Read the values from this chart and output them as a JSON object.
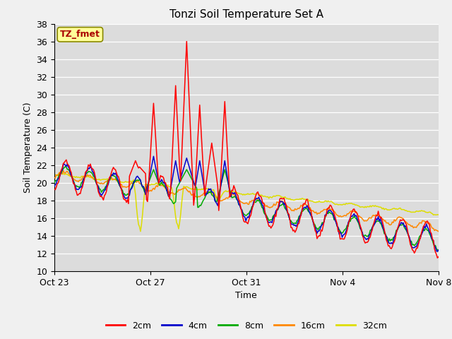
{
  "title": "Tonzi Soil Temperature Set A",
  "xlabel": "Time",
  "ylabel": "Soil Temperature (C)",
  "ylim": [
    10,
    38
  ],
  "yticks": [
    10,
    12,
    14,
    16,
    18,
    20,
    22,
    24,
    26,
    28,
    30,
    32,
    34,
    36,
    38
  ],
  "fig_bg_color": "#f0f0f0",
  "plot_bg_color": "#dcdcdc",
  "grid_color": "#ffffff",
  "annotation_label": "TZ_fmet",
  "annotation_color": "#aa0000",
  "annotation_bg": "#ffff99",
  "annotation_border": "#888800",
  "series_colors": {
    "2cm": "#ff0000",
    "4cm": "#0000cc",
    "8cm": "#00aa00",
    "16cm": "#ff8800",
    "32cm": "#dddd00"
  },
  "x_tick_labels": [
    "Oct 23",
    "Oct 27",
    "Oct 31",
    "Nov 4",
    "Nov 8"
  ],
  "x_tick_positions": [
    0,
    4,
    8,
    12,
    16
  ],
  "n_points": 384,
  "total_days": 16
}
